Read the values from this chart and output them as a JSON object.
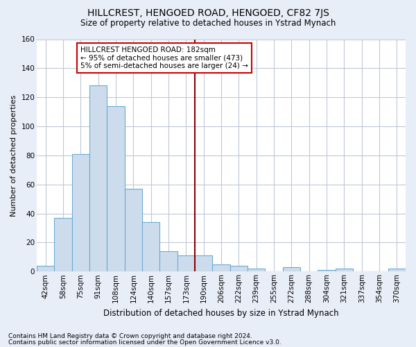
{
  "title": "HILLCREST, HENGOED ROAD, HENGOED, CF82 7JS",
  "subtitle": "Size of property relative to detached houses in Ystrad Mynach",
  "xlabel": "Distribution of detached houses by size in Ystrad Mynach",
  "ylabel": "Number of detached properties",
  "footnote1": "Contains HM Land Registry data © Crown copyright and database right 2024.",
  "footnote2": "Contains public sector information licensed under the Open Government Licence v3.0.",
  "bin_labels": [
    "42sqm",
    "58sqm",
    "75sqm",
    "91sqm",
    "108sqm",
    "124sqm",
    "140sqm",
    "157sqm",
    "173sqm",
    "190sqm",
    "206sqm",
    "222sqm",
    "239sqm",
    "255sqm",
    "272sqm",
    "288sqm",
    "304sqm",
    "321sqm",
    "337sqm",
    "354sqm",
    "370sqm"
  ],
  "bar_heights": [
    4,
    37,
    81,
    128,
    114,
    57,
    34,
    14,
    11,
    11,
    5,
    4,
    2,
    0,
    3,
    0,
    1,
    2,
    0,
    0,
    2
  ],
  "bar_color": "#cddcec",
  "bar_edgecolor": "#6aaad4",
  "vline_x": 8.5,
  "vline_color": "#8b0000",
  "ylim": [
    0,
    160
  ],
  "yticks": [
    0,
    20,
    40,
    60,
    80,
    100,
    120,
    140,
    160
  ],
  "annotation_text": "HILLCREST HENGOED ROAD: 182sqm\n← 95% of detached houses are smaller (473)\n5% of semi-detached houses are larger (24) →",
  "annotation_box_edgecolor": "#cc0000",
  "fig_bg_color": "#e8eef8",
  "plot_bg_color": "#ffffff",
  "grid_color": "#c0c8d8",
  "title_fontsize": 10,
  "subtitle_fontsize": 8.5,
  "ylabel_fontsize": 8,
  "xlabel_fontsize": 8.5,
  "tick_fontsize": 7.5,
  "annot_fontsize": 7.5,
  "footnote_fontsize": 6.5
}
